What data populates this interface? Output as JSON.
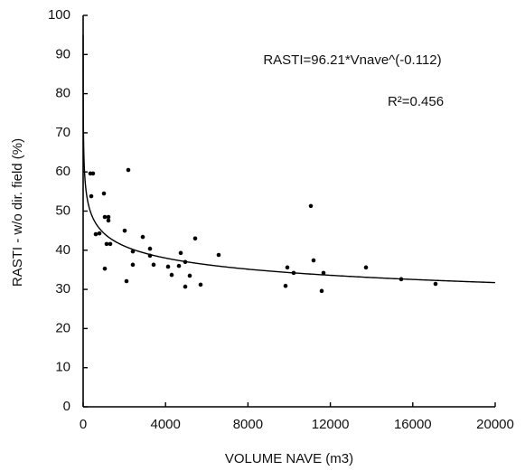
{
  "chart_data": {
    "type": "scatter",
    "x_label": "VOLUME NAVE (m3)",
    "y_label": "RASTI - w/o dir. field (%)",
    "annotations": {
      "equation": "RASTI=96.21*Vnave^(-0.112)",
      "r_squared": "R²=0.456"
    },
    "fit": {
      "coefficient": 96.21,
      "exponent": -0.112
    },
    "color": "#000000",
    "x": [
      350,
      480,
      395,
      614,
      790,
      1009,
      1053,
      1228,
      1228,
      1140,
      1316,
      1053,
      2193,
      2018,
      2105,
      2412,
      2412,
      2895,
      3246,
      3246,
      3421,
      4123,
      4298,
      4649,
      4737,
      4956,
      4956,
      5175,
      5439,
      5702,
      6579,
      9825,
      9912,
      10219,
      11579,
      11667,
      11053,
      11184,
      13728,
      15439,
      17105
    ],
    "values": [
      59.6,
      59.6,
      53.8,
      44.1,
      44.3,
      54.5,
      48.5,
      48.5,
      47.6,
      41.6,
      41.6,
      35.3,
      60.5,
      45.0,
      32.1,
      39.7,
      36.3,
      43.4,
      40.4,
      38.6,
      36.3,
      35.8,
      33.7,
      36.0,
      39.3,
      30.7,
      37.0,
      33.5,
      43.0,
      31.2,
      38.8,
      30.9,
      35.6,
      34.2,
      29.6,
      34.2,
      51.3,
      37.4,
      35.6,
      32.6,
      31.4
    ],
    "xlim": [
      0,
      20000
    ],
    "xticks": [
      0,
      4000,
      8000,
      12000,
      16000,
      20000
    ],
    "ylim": [
      0,
      100
    ],
    "yticks": [
      0,
      10,
      20,
      30,
      40,
      50,
      60,
      70,
      80,
      90,
      100
    ],
    "grid": false
  }
}
